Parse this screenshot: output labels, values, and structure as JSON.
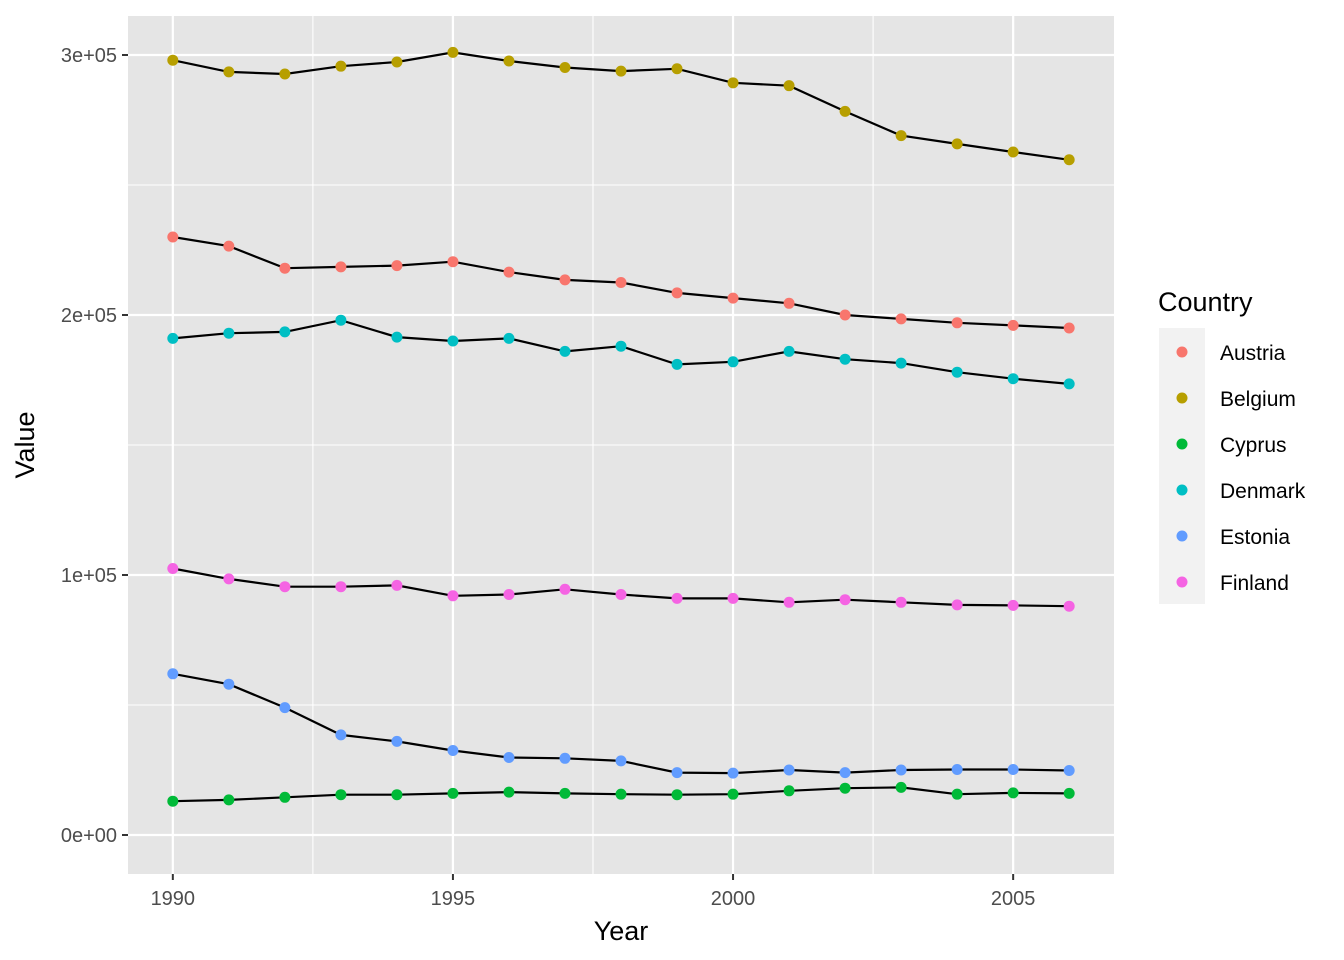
{
  "chart_data": {
    "type": "line",
    "xlabel": "Year",
    "ylabel": "Value",
    "xlim": [
      1989.2,
      2006.8
    ],
    "ylim": [
      -15000,
      315000
    ],
    "x_ticks": [
      1990,
      1995,
      2000,
      2005
    ],
    "x_tick_labels": [
      "1990",
      "1995",
      "2000",
      "2005"
    ],
    "y_ticks": [
      0,
      100000,
      200000,
      300000
    ],
    "y_tick_labels": [
      "0e+00",
      "1e+05",
      "2e+05",
      "3e+05"
    ],
    "grid": true,
    "background": "#e5e5e5",
    "line_color": "#000000",
    "legend": {
      "title": "Country",
      "position": "right"
    },
    "x": [
      1990,
      1991,
      1992,
      1993,
      1994,
      1995,
      1996,
      1997,
      1998,
      1999,
      2000,
      2001,
      2002,
      2003,
      2004,
      2005,
      2006
    ],
    "series": [
      {
        "name": "Austria",
        "color": "#F8766D",
        "values": [
          230000,
          226500,
          218000,
          218500,
          219000,
          220500,
          216500,
          213500,
          212500,
          208500,
          206500,
          204500,
          200000,
          198500,
          197000,
          196000,
          195000
        ]
      },
      {
        "name": "Belgium",
        "color": "#B79F00",
        "values": [
          298000,
          293500,
          292700,
          295700,
          297300,
          301000,
          297700,
          295200,
          293800,
          294700,
          289300,
          288200,
          278300,
          269000,
          265800,
          262700,
          259700
        ]
      },
      {
        "name": "Cyprus",
        "color": "#00BA38",
        "values": [
          13000,
          13500,
          14500,
          15500,
          15500,
          16000,
          16500,
          16000,
          15700,
          15500,
          15700,
          17000,
          18000,
          18300,
          15700,
          16200,
          16000
        ]
      },
      {
        "name": "Denmark",
        "color": "#00BFC4",
        "values": [
          191000,
          193000,
          193500,
          198000,
          191500,
          190000,
          191000,
          186000,
          188000,
          181000,
          182000,
          186000,
          183000,
          181500,
          178000,
          175500,
          173500
        ]
      },
      {
        "name": "Estonia",
        "color": "#619CFF",
        "values": [
          62000,
          58000,
          49000,
          38500,
          36000,
          32500,
          29800,
          29500,
          28500,
          24000,
          23800,
          25000,
          24000,
          25000,
          25200,
          25200,
          24800
        ]
      },
      {
        "name": "Finland",
        "color": "#F564E3",
        "values": [
          102500,
          98500,
          95500,
          95500,
          96000,
          92000,
          92500,
          94500,
          92500,
          91000,
          91000,
          89500,
          90500,
          89500,
          88500,
          88300,
          88000
        ]
      }
    ]
  }
}
